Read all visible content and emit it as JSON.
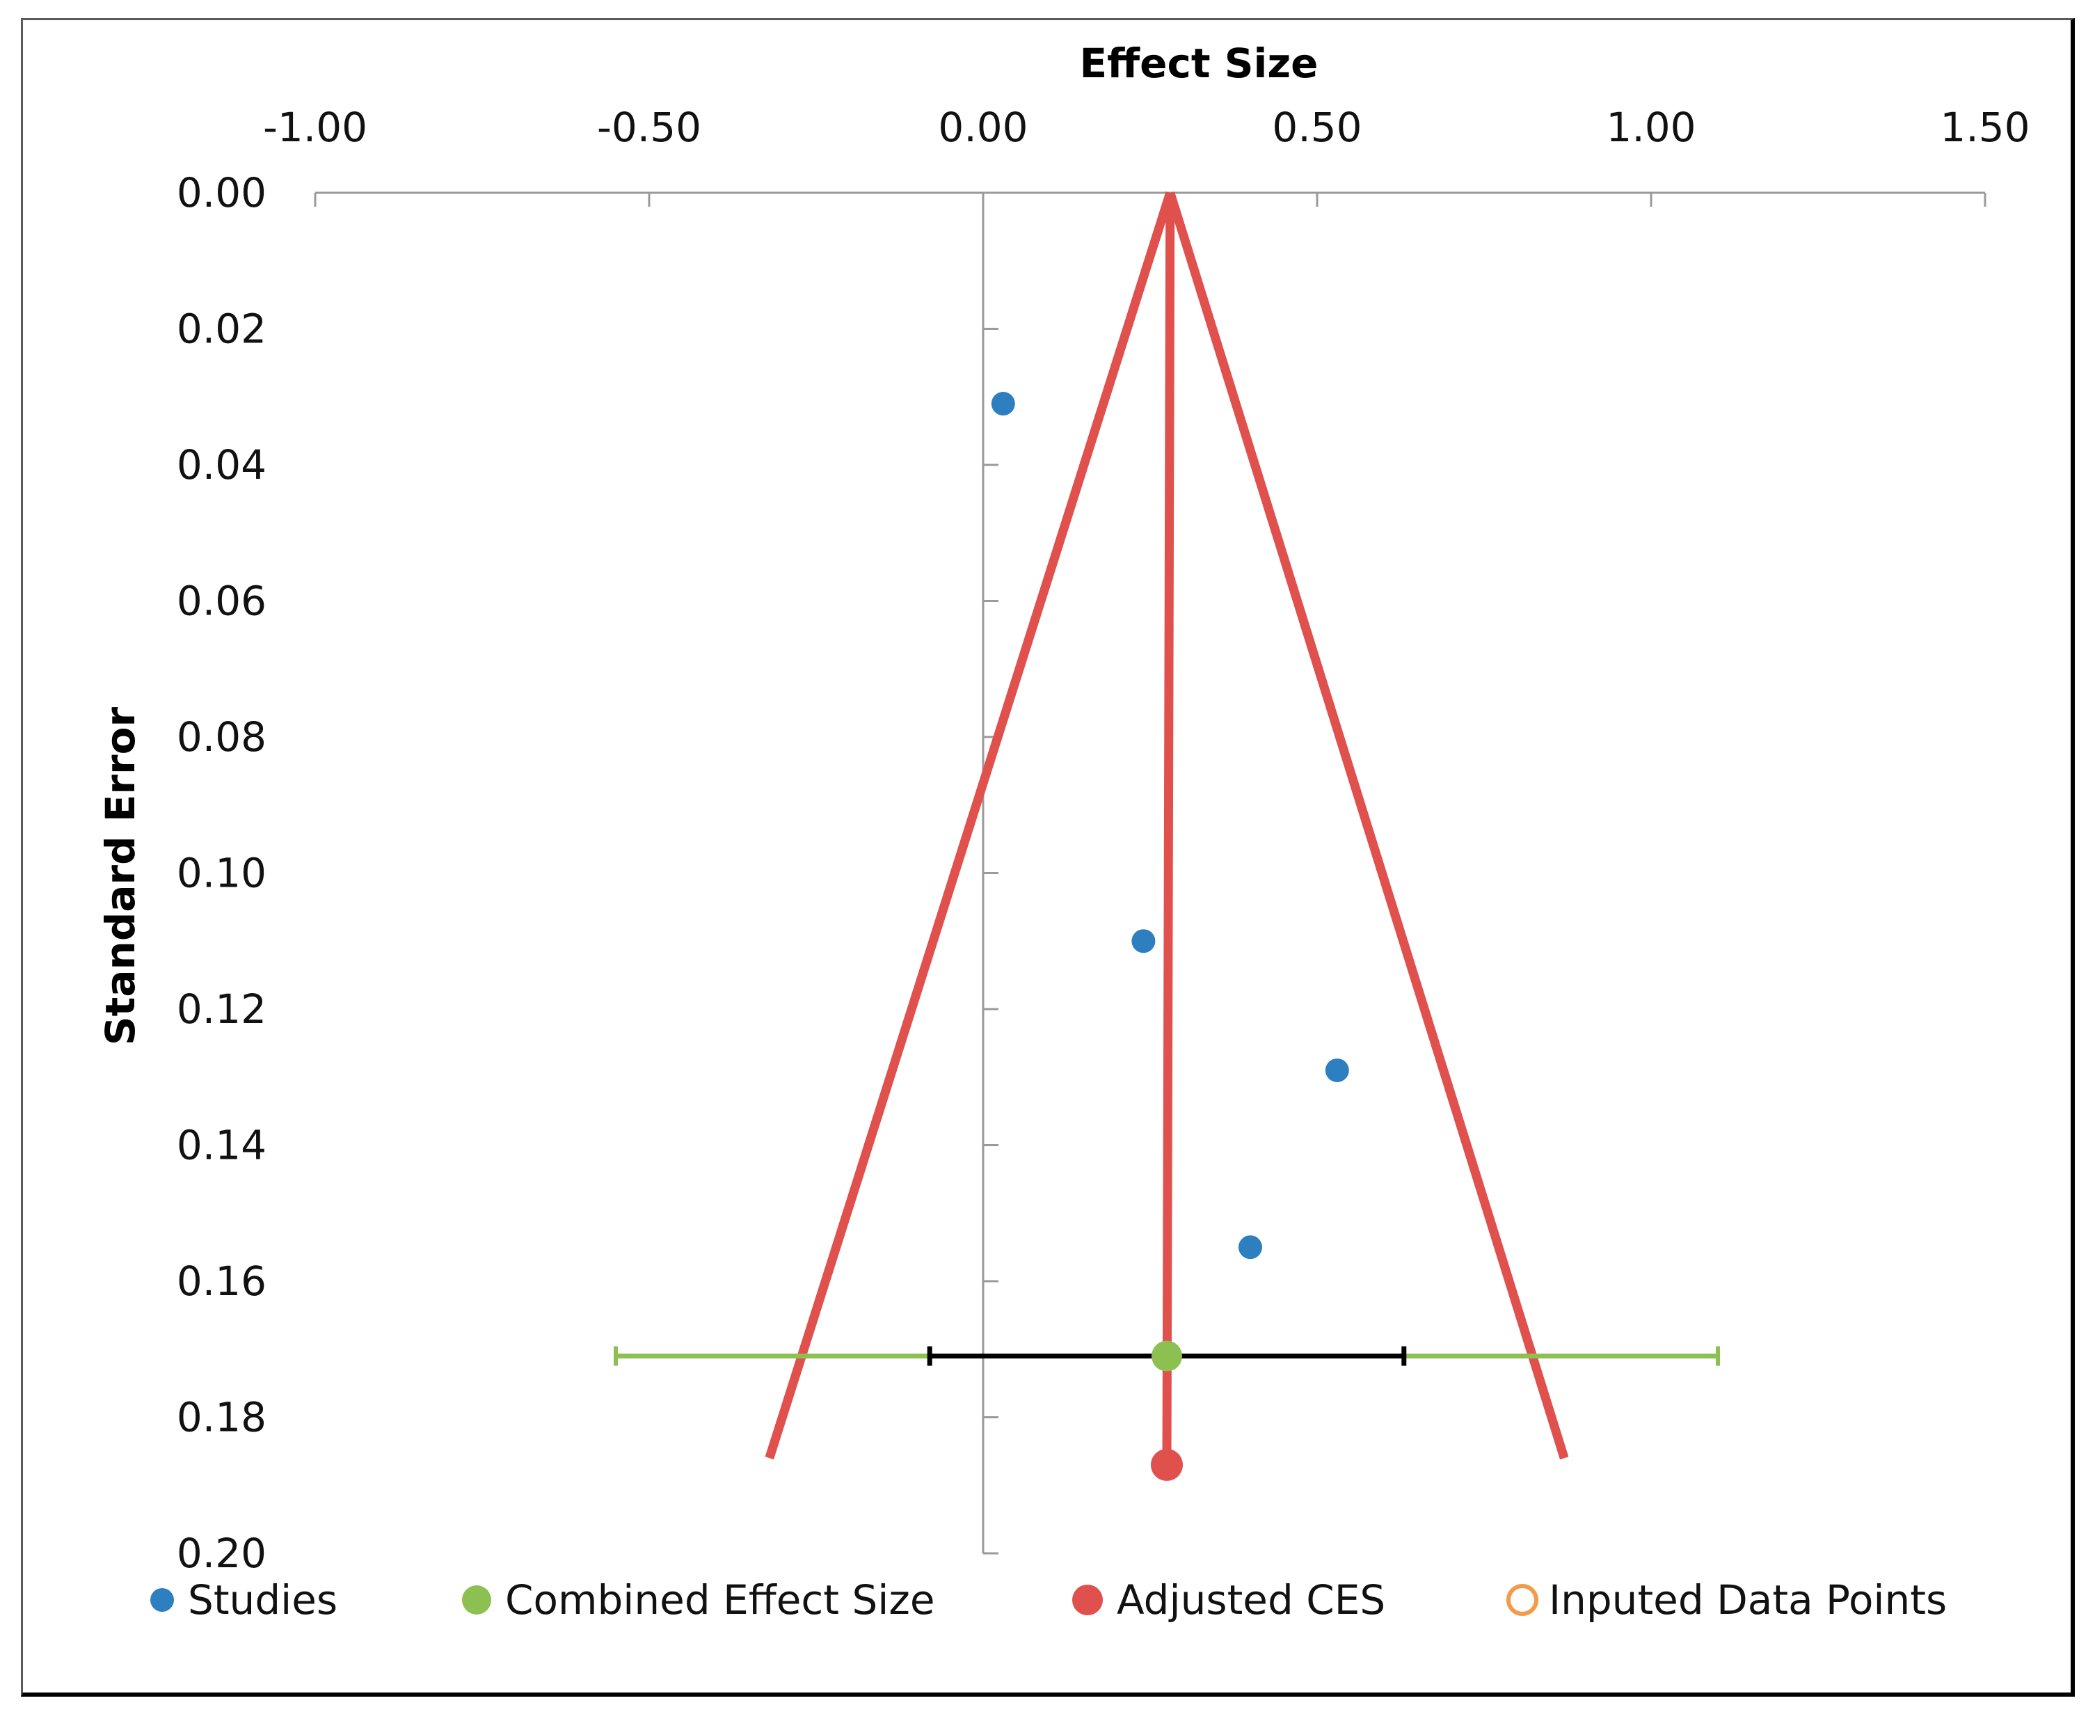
{
  "colors": {
    "studies": "#2e7fc0",
    "combined": "#8cc152",
    "adjusted": "#e0504d",
    "imputed": "#f29b4a",
    "ci_inner": "#000000",
    "axis": "#9a9a9a"
  },
  "chart_data": {
    "type": "scatter",
    "subtype": "funnel-plot",
    "title": "",
    "xlabel": "Effect Size",
    "ylabel": "Standard Error",
    "x_axis_position": "top",
    "y_axis_reversed": true,
    "xlim": [
      -1.0,
      1.5
    ],
    "ylim": [
      0.0,
      0.2
    ],
    "x_ticks": [
      -1.0,
      -0.5,
      0.0,
      0.5,
      1.0,
      1.5
    ],
    "x_tick_labels": [
      "-1.00",
      "-0.50",
      "0.00",
      "0.50",
      "1.00",
      "1.50"
    ],
    "y_ticks": [
      0.0,
      0.02,
      0.04,
      0.06,
      0.08,
      0.1,
      0.12,
      0.14,
      0.16,
      0.18,
      0.2
    ],
    "y_tick_labels": [
      "0.00",
      "0.02",
      "0.04",
      "0.06",
      "0.08",
      "0.10",
      "0.12",
      "0.14",
      "0.16",
      "0.18",
      "0.20"
    ],
    "grid": false,
    "legend_position": "bottom",
    "series": [
      {
        "name": "Studies",
        "marker": "filled-circle",
        "points": [
          {
            "x": 0.03,
            "y": 0.031
          },
          {
            "x": 0.24,
            "y": 0.11
          },
          {
            "x": 0.53,
            "y": 0.129
          },
          {
            "x": 0.4,
            "y": 0.155
          }
        ]
      },
      {
        "name": "Combined Effect Size",
        "marker": "filled-circle",
        "points": [
          {
            "x": 0.275,
            "y": 0.171
          }
        ],
        "ci_inner": [
          -0.08,
          0.63
        ],
        "ci_outer": [
          -0.55,
          1.1
        ]
      },
      {
        "name": "Adjusted CES",
        "marker": "filled-circle",
        "points": [
          {
            "x": 0.275,
            "y": 0.187
          }
        ]
      },
      {
        "name": "Inputed Data Points",
        "marker": "hollow-circle",
        "points": []
      }
    ],
    "funnel": {
      "center": 0.28,
      "apex_se": 0.0,
      "left_line": [
        {
          "x": 0.28,
          "y": 0.0
        },
        {
          "x": -0.32,
          "y": 0.186
        }
      ],
      "right_line": [
        {
          "x": 0.28,
          "y": 0.0
        },
        {
          "x": 0.87,
          "y": 0.186
        }
      ],
      "center_line": [
        {
          "x": 0.28,
          "y": 0.0
        },
        {
          "x": 0.275,
          "y": 0.187
        }
      ]
    },
    "legend": [
      "Studies",
      "Combined Effect Size",
      "Adjusted CES",
      "Inputed Data Points"
    ]
  }
}
